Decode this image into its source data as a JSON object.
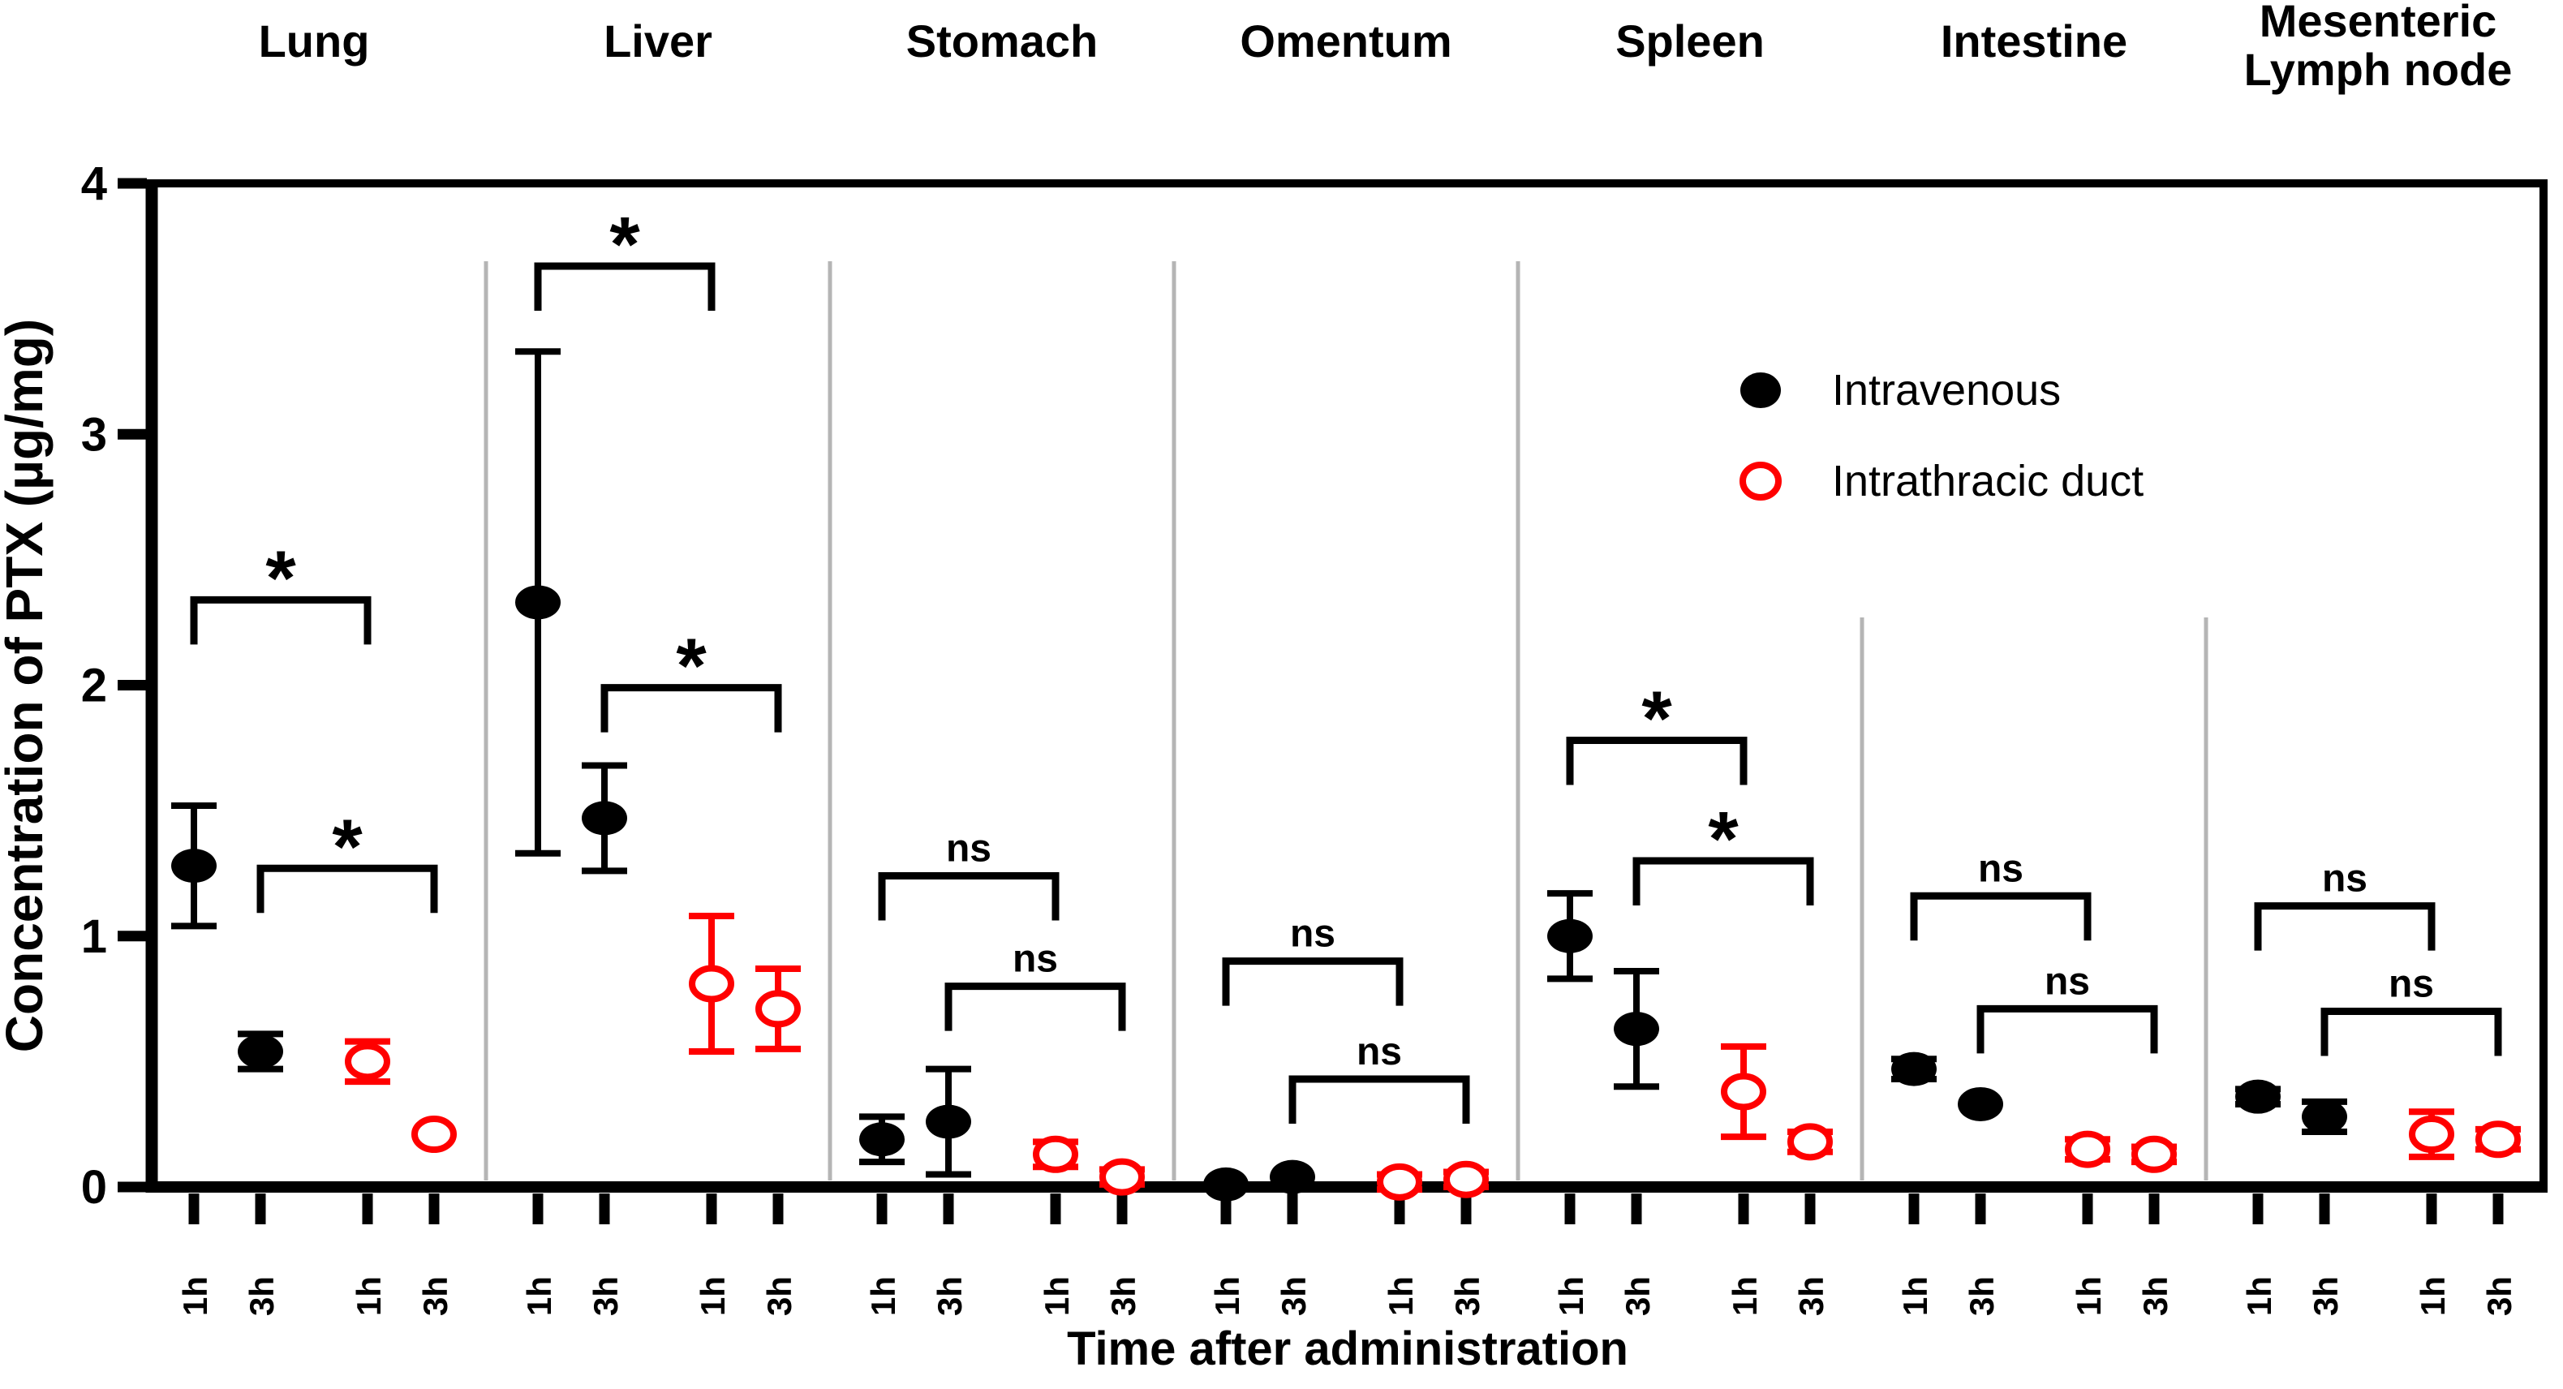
{
  "axes": {
    "y_title": "Concentration of PTX (µg/mg)",
    "x_title": "Time after administration",
    "y_ticks": [
      "0",
      "1",
      "2",
      "3",
      "4"
    ],
    "x_tick_labels": [
      "1h",
      "3h",
      "1h",
      "3h"
    ]
  },
  "legend": {
    "items": [
      {
        "label": "Intravenous",
        "marker": "filled-circle",
        "color": "#000000"
      },
      {
        "label": "Intrathracic duct",
        "marker": "open-circle",
        "color": "#ff0000"
      }
    ]
  },
  "colors": {
    "intravenous": "#000000",
    "intrathracic_duct": "#ff0000",
    "divider": "#b5b5b5",
    "axis": "#000000"
  },
  "chart_data": {
    "type": "scatter",
    "title": "",
    "xlabel": "Time after administration",
    "ylabel": "Concentration of PTX (µg/mg)",
    "ylim": [
      0,
      4
    ],
    "y_tick_values": [
      0,
      1,
      2,
      3,
      4
    ],
    "grid": false,
    "legend_position": "inside-upper-right",
    "series": [
      {
        "name": "Intravenous",
        "marker": "filled-circle",
        "color": "#000000"
      },
      {
        "name": "Intrathracic duct",
        "marker": "open-circle",
        "color": "#ff0000"
      }
    ],
    "x_tick_labels_per_group": [
      "1h",
      "3h",
      "1h",
      "3h"
    ],
    "groups": [
      {
        "organ": "Lung",
        "header_lines": [
          "Lung"
        ],
        "points": [
          {
            "series": "Intravenous",
            "time": "1h",
            "value": 1.28,
            "error": 0.24
          },
          {
            "series": "Intravenous",
            "time": "3h",
            "value": 0.54,
            "error": 0.07
          },
          {
            "series": "Intrathracic duct",
            "time": "1h",
            "value": 0.5,
            "error": 0.08
          },
          {
            "series": "Intrathracic duct",
            "time": "3h",
            "value": 0.21,
            "error": 0
          }
        ],
        "comparisons": [
          {
            "label": "*",
            "pair": "1h",
            "height": 2.34
          },
          {
            "label": "*",
            "pair": "3h",
            "height": 1.27
          }
        ]
      },
      {
        "organ": "Liver",
        "header_lines": [
          "Liver"
        ],
        "points": [
          {
            "series": "Intravenous",
            "time": "1h",
            "value": 2.33,
            "error": 1.0
          },
          {
            "series": "Intravenous",
            "time": "3h",
            "value": 1.47,
            "error": 0.21
          },
          {
            "series": "Intrathracic duct",
            "time": "1h",
            "value": 0.81,
            "error": 0.27
          },
          {
            "series": "Intrathracic duct",
            "time": "3h",
            "value": 0.71,
            "error": 0.16
          }
        ],
        "comparisons": [
          {
            "label": "*",
            "pair": "1h",
            "height": 3.67
          },
          {
            "label": "*",
            "pair": "3h",
            "height": 1.99
          }
        ]
      },
      {
        "organ": "Stomach",
        "header_lines": [
          "Stomach"
        ],
        "points": [
          {
            "series": "Intravenous",
            "time": "1h",
            "value": 0.19,
            "error": 0.09
          },
          {
            "series": "Intravenous",
            "time": "3h",
            "value": 0.26,
            "error": 0.21
          },
          {
            "series": "Intrathracic duct",
            "time": "1h",
            "value": 0.13,
            "error": 0.05
          },
          {
            "series": "Intrathracic duct",
            "time": "3h",
            "value": 0.04,
            "error": 0.03
          }
        ],
        "comparisons": [
          {
            "label": "ns",
            "pair": "1h",
            "height": 1.24
          },
          {
            "label": "ns",
            "pair": "3h",
            "height": 0.8
          }
        ]
      },
      {
        "organ": "Omentum",
        "header_lines": [
          "Omentum"
        ],
        "points": [
          {
            "series": "Intravenous",
            "time": "1h",
            "value": 0.01,
            "error": 0
          },
          {
            "series": "Intravenous",
            "time": "3h",
            "value": 0.04,
            "error": 0
          },
          {
            "series": "Intrathracic duct",
            "time": "1h",
            "value": 0.02,
            "error": 0.03
          },
          {
            "series": "Intrathracic duct",
            "time": "3h",
            "value": 0.03,
            "error": 0.03
          }
        ],
        "comparisons": [
          {
            "label": "ns",
            "pair": "1h",
            "height": 0.9
          },
          {
            "label": "ns",
            "pair": "3h",
            "height": 0.43
          }
        ]
      },
      {
        "organ": "Spleen",
        "header_lines": [
          "Spleen"
        ],
        "points": [
          {
            "series": "Intravenous",
            "time": "1h",
            "value": 1.0,
            "error": 0.17
          },
          {
            "series": "Intravenous",
            "time": "3h",
            "value": 0.63,
            "error": 0.23
          },
          {
            "series": "Intrathracic duct",
            "time": "1h",
            "value": 0.38,
            "error": 0.18
          },
          {
            "series": "Intrathracic duct",
            "time": "3h",
            "value": 0.18,
            "error": 0.04
          }
        ],
        "comparisons": [
          {
            "label": "*",
            "pair": "1h",
            "height": 1.78
          },
          {
            "label": "*",
            "pair": "3h",
            "height": 1.3
          }
        ]
      },
      {
        "organ": "Intestine",
        "header_lines": [
          "Intestine"
        ],
        "points": [
          {
            "series": "Intravenous",
            "time": "1h",
            "value": 0.47,
            "error": 0.04
          },
          {
            "series": "Intravenous",
            "time": "3h",
            "value": 0.33,
            "error": 0
          },
          {
            "series": "Intrathracic duct",
            "time": "1h",
            "value": 0.15,
            "error": 0.04
          },
          {
            "series": "Intrathracic duct",
            "time": "3h",
            "value": 0.13,
            "error": 0.03
          }
        ],
        "comparisons": [
          {
            "label": "ns",
            "pair": "1h",
            "height": 1.16
          },
          {
            "label": "ns",
            "pair": "3h",
            "height": 0.71
          }
        ]
      },
      {
        "organ": "Mesenteric Lymph node",
        "header_lines": [
          "Mesenteric",
          "Lymph node"
        ],
        "points": [
          {
            "series": "Intravenous",
            "time": "1h",
            "value": 0.36,
            "error": 0.03
          },
          {
            "series": "Intravenous",
            "time": "3h",
            "value": 0.28,
            "error": 0.06
          },
          {
            "series": "Intrathracic duct",
            "time": "1h",
            "value": 0.21,
            "error": 0.09
          },
          {
            "series": "Intrathracic duct",
            "time": "3h",
            "value": 0.19,
            "error": 0.04
          }
        ],
        "comparisons": [
          {
            "label": "ns",
            "pair": "1h",
            "height": 1.12
          },
          {
            "label": "ns",
            "pair": "3h",
            "height": 0.7
          }
        ]
      }
    ]
  }
}
